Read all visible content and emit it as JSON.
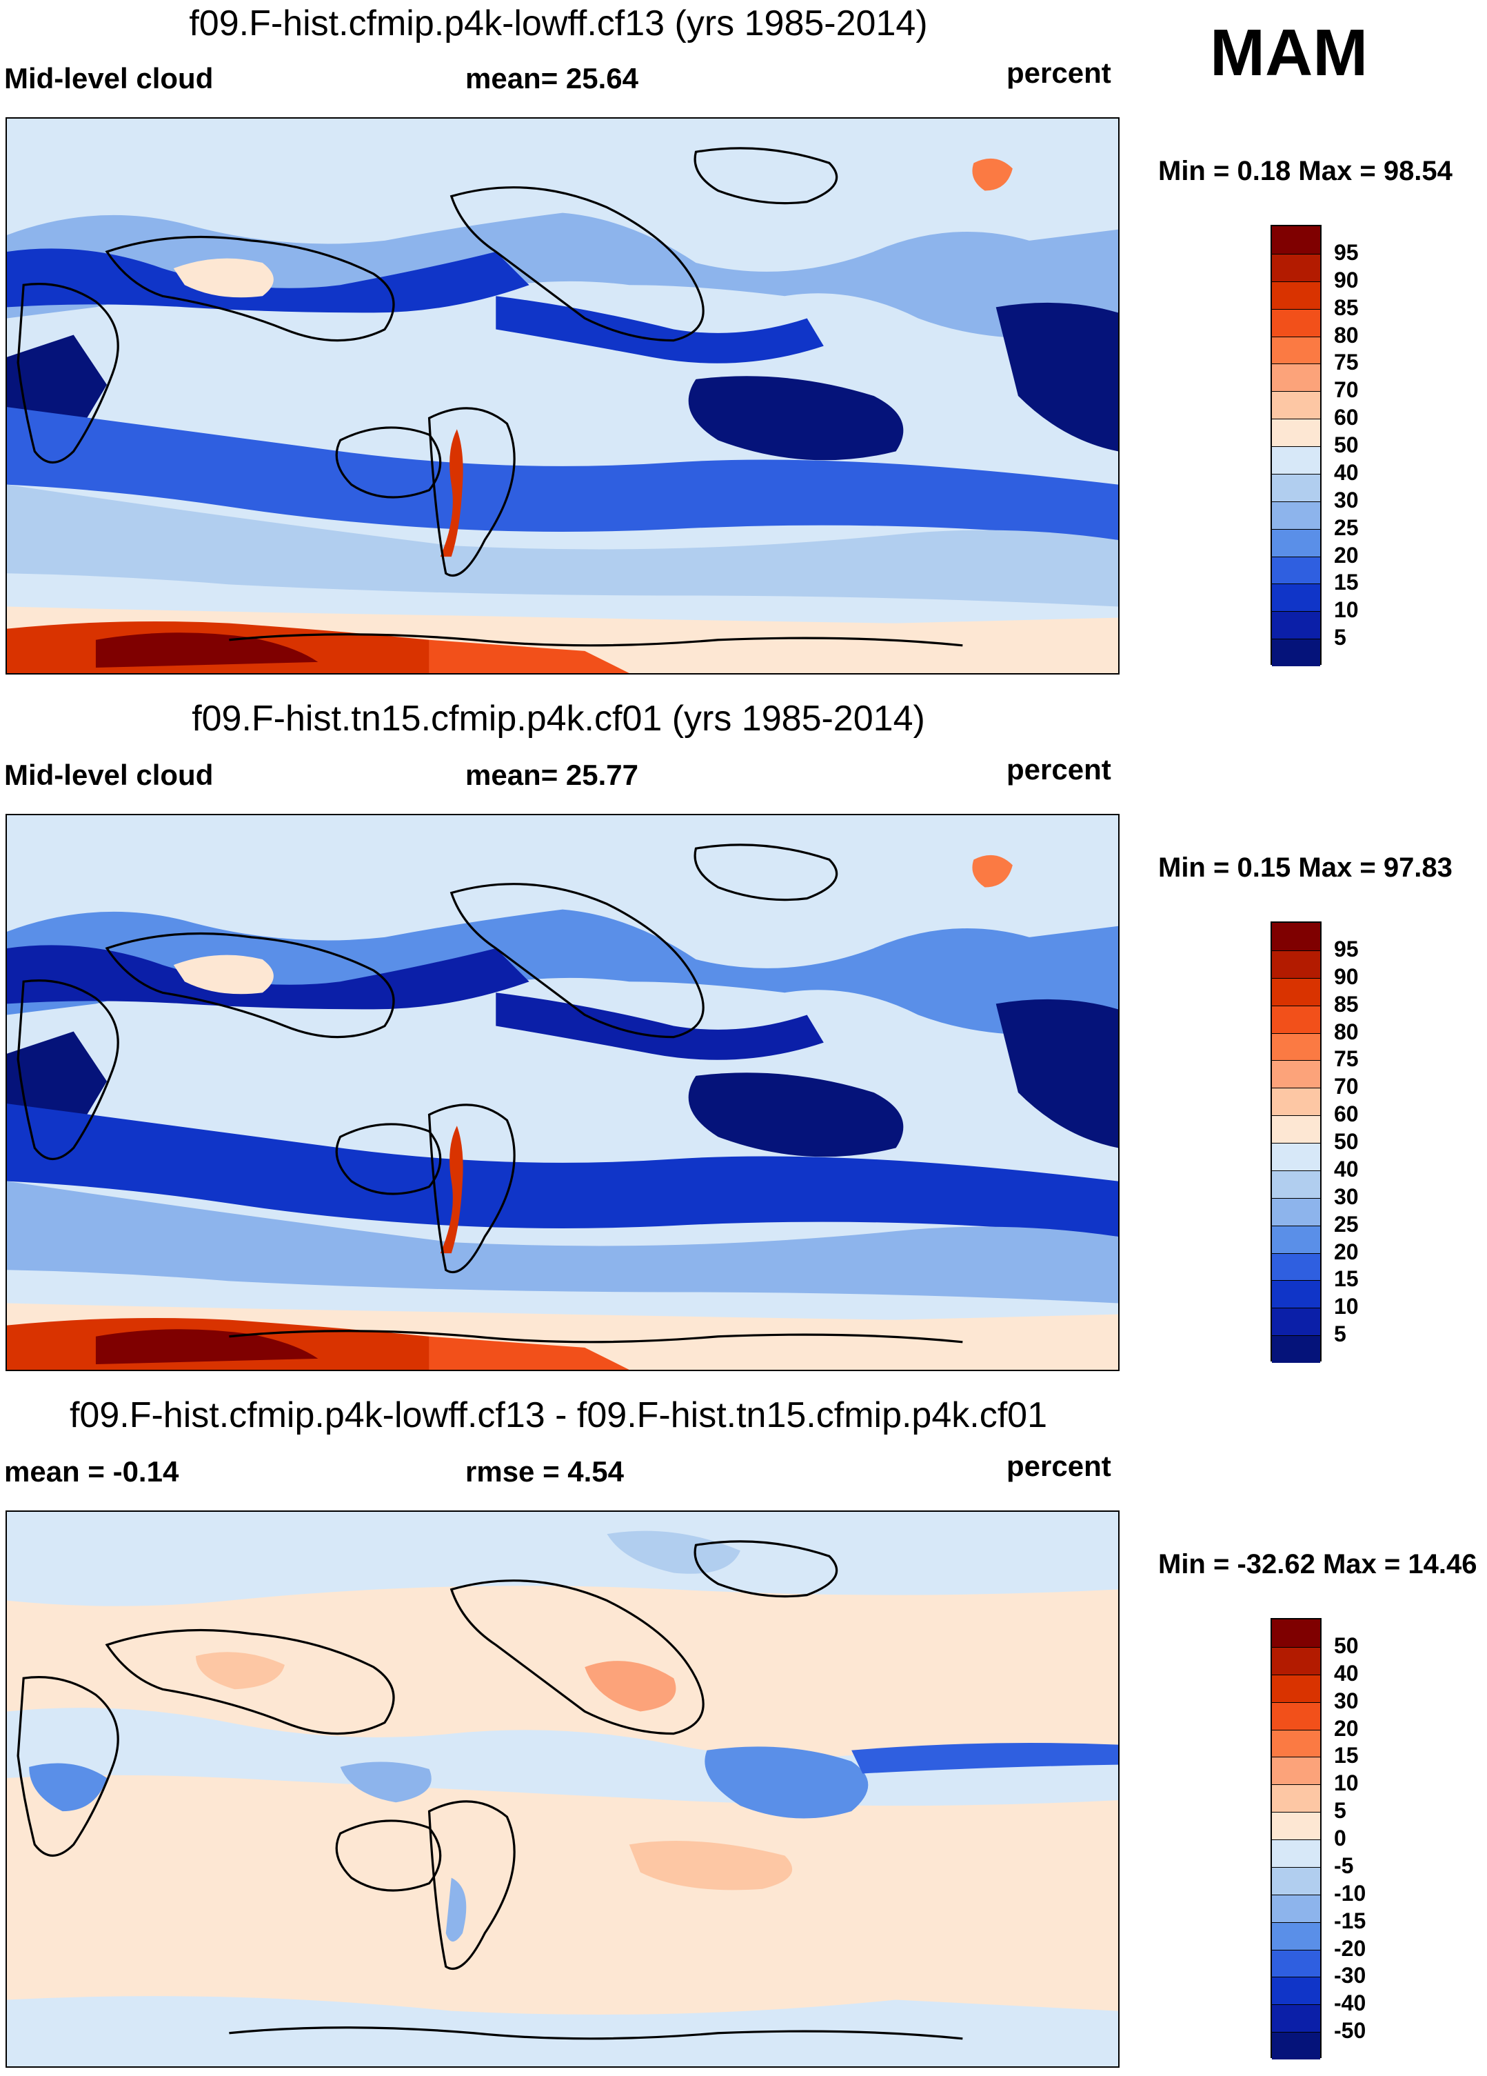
{
  "season": "MAM",
  "panels": [
    {
      "title": "f09.F-hist.cfmip.p4k-lowff.cf13 (yrs 1985-2014)",
      "left_label": "Mid-level cloud",
      "center_label": "mean=  25.64",
      "right_label": "percent",
      "minmax": "Min =   0.18 Max =  98.54",
      "map_type": "absolute"
    },
    {
      "title": "f09.F-hist.tn15.cfmip.p4k.cf01 (yrs 1985-2014)",
      "left_label": "Mid-level cloud",
      "center_label": "mean=  25.77",
      "right_label": "percent",
      "minmax": "Min =   0.15 Max =  97.83",
      "map_type": "absolute"
    },
    {
      "title": "f09.F-hist.cfmip.p4k-lowff.cf13 - f09.F-hist.tn15.cfmip.p4k.cf01",
      "left_label": "mean =  -0.14",
      "center_label": "rmse =    4.54",
      "right_label": "percent",
      "minmax": "Min = -32.62 Max =  14.46",
      "map_type": "difference"
    }
  ],
  "colorbars": {
    "absolute": {
      "labels": [
        "95",
        "90",
        "85",
        "80",
        "75",
        "70",
        "60",
        "50",
        "40",
        "30",
        "25",
        "20",
        "15",
        "10",
        "5"
      ],
      "colors": [
        "#7f0000",
        "#b31b00",
        "#d93300",
        "#f2501a",
        "#fb7a43",
        "#fca37a",
        "#fdc7a4",
        "#fde7d3",
        "#d7e8f8",
        "#b1ceef",
        "#8db4ec",
        "#5a8fe8",
        "#2f5fe0",
        "#1035c8",
        "#0b1fa8",
        "#05137a"
      ]
    },
    "difference": {
      "labels": [
        "50",
        "40",
        "30",
        "20",
        "15",
        "10",
        "5",
        "0",
        "-5",
        "-10",
        "-15",
        "-20",
        "-30",
        "-40",
        "-50"
      ],
      "colors": [
        "#7f0000",
        "#b31b00",
        "#d93300",
        "#f2501a",
        "#fb7a43",
        "#fca37a",
        "#fdc7a4",
        "#fde7d3",
        "#d7e8f8",
        "#b1ceef",
        "#8db4ec",
        "#5a8fe8",
        "#2f5fe0",
        "#1035c8",
        "#0b1fa8",
        "#05137a"
      ]
    }
  }
}
